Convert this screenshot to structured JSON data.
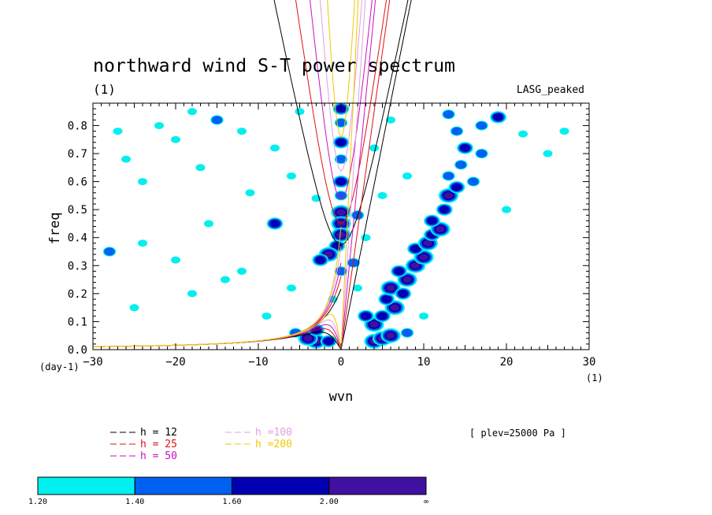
{
  "chart_data": {
    "type": "heatmap",
    "title": "northward wind S-T power spectrum",
    "subtitle_left": "(1)",
    "subtitle_right": "LASG_peaked",
    "xlabel": "wvn",
    "ylabel": "freq",
    "x_unit": "(1)",
    "y_unit": "(day-1)",
    "xlim": [
      -30,
      30
    ],
    "ylim": [
      0,
      0.88
    ],
    "xticks": [
      -30,
      -20,
      -10,
      0,
      10,
      20,
      30
    ],
    "yticks": [
      0.0,
      0.1,
      0.2,
      0.3,
      0.4,
      0.5,
      0.6,
      0.7,
      0.8
    ],
    "xtick_labels": [
      "−30",
      "−20",
      "−10",
      "0",
      "10",
      "20",
      "30"
    ],
    "ytick_labels": [
      "0.0",
      "0.1",
      "0.2",
      "0.3",
      "0.4",
      "0.5",
      "0.6",
      "0.7",
      "0.8"
    ],
    "annotation": "[ plev=25000 Pa ]",
    "dispersion_curves": [
      {
        "label": "h = 12",
        "h": 12,
        "color": "#000000"
      },
      {
        "label": "h = 25",
        "h": 25,
        "color": "#e01010"
      },
      {
        "label": "h = 50",
        "h": 50,
        "color": "#c810c0"
      },
      {
        "label": "h =100",
        "h": 100,
        "color": "#e0a0e0"
      },
      {
        "label": "h =200",
        "h": 200,
        "color": "#f0c800"
      }
    ],
    "colorbar": {
      "levels": [
        "1.20",
        "1.40",
        "1.60",
        "2.00",
        "∞"
      ],
      "colors": [
        "#00f0f0",
        "#0060f0",
        "#0000b0",
        "#4010a0"
      ]
    },
    "power_blobs": [
      {
        "x": 0,
        "y": 0.86,
        "level": 2
      },
      {
        "x": 0,
        "y": 0.81,
        "level": 1
      },
      {
        "x": 0,
        "y": 0.74,
        "level": 2
      },
      {
        "x": 0,
        "y": 0.68,
        "level": 1
      },
      {
        "x": 0,
        "y": 0.6,
        "level": 2
      },
      {
        "x": 0,
        "y": 0.55,
        "level": 1
      },
      {
        "x": 0,
        "y": 0.49,
        "level": 3
      },
      {
        "x": 0,
        "y": 0.45,
        "level": 3
      },
      {
        "x": 0,
        "y": 0.41,
        "level": 3
      },
      {
        "x": -0.5,
        "y": 0.37,
        "level": 2
      },
      {
        "x": -1.5,
        "y": 0.34,
        "level": 3
      },
      {
        "x": -2.5,
        "y": 0.32,
        "level": 2
      },
      {
        "x": 0,
        "y": 0.28,
        "level": 1
      },
      {
        "x": 2,
        "y": 0.48,
        "level": 1
      },
      {
        "x": -8,
        "y": 0.45,
        "level": 2
      },
      {
        "x": 1.5,
        "y": 0.31,
        "level": 1
      },
      {
        "x": -3,
        "y": 0.03,
        "level": 3
      },
      {
        "x": -4,
        "y": 0.04,
        "level": 3
      },
      {
        "x": -3,
        "y": 0.07,
        "level": 2
      },
      {
        "x": -1.5,
        "y": 0.03,
        "level": 2
      },
      {
        "x": -5.5,
        "y": 0.06,
        "level": 1
      },
      {
        "x": 4,
        "y": 0.03,
        "level": 3
      },
      {
        "x": 5,
        "y": 0.04,
        "level": 3
      },
      {
        "x": 6,
        "y": 0.05,
        "level": 3
      },
      {
        "x": 4,
        "y": 0.09,
        "level": 3
      },
      {
        "x": 5,
        "y": 0.12,
        "level": 2
      },
      {
        "x": 3,
        "y": 0.12,
        "level": 2
      },
      {
        "x": 6.5,
        "y": 0.15,
        "level": 3
      },
      {
        "x": 5.5,
        "y": 0.18,
        "level": 2
      },
      {
        "x": 6,
        "y": 0.22,
        "level": 3
      },
      {
        "x": 7.5,
        "y": 0.2,
        "level": 2
      },
      {
        "x": 8,
        "y": 0.25,
        "level": 3
      },
      {
        "x": 7,
        "y": 0.28,
        "level": 2
      },
      {
        "x": 9,
        "y": 0.3,
        "level": 3
      },
      {
        "x": 10,
        "y": 0.33,
        "level": 3
      },
      {
        "x": 9,
        "y": 0.36,
        "level": 2
      },
      {
        "x": 10.5,
        "y": 0.38,
        "level": 3
      },
      {
        "x": 11,
        "y": 0.41,
        "level": 2
      },
      {
        "x": 12,
        "y": 0.43,
        "level": 3
      },
      {
        "x": 11,
        "y": 0.46,
        "level": 2
      },
      {
        "x": 12.5,
        "y": 0.5,
        "level": 2
      },
      {
        "x": 13,
        "y": 0.55,
        "level": 3
      },
      {
        "x": 14,
        "y": 0.58,
        "level": 2
      },
      {
        "x": 13,
        "y": 0.62,
        "level": 1
      },
      {
        "x": 14.5,
        "y": 0.66,
        "level": 1
      },
      {
        "x": 15,
        "y": 0.72,
        "level": 2
      },
      {
        "x": 14,
        "y": 0.78,
        "level": 1
      },
      {
        "x": 17,
        "y": 0.8,
        "level": 1
      },
      {
        "x": 19,
        "y": 0.83,
        "level": 2
      },
      {
        "x": 13,
        "y": 0.84,
        "level": 1
      },
      {
        "x": 16,
        "y": 0.6,
        "level": 1
      },
      {
        "x": 17,
        "y": 0.7,
        "level": 1
      },
      {
        "x": 8,
        "y": 0.06,
        "level": 1
      },
      {
        "x": 10,
        "y": 0.12,
        "level": 0
      },
      {
        "x": 2,
        "y": 0.22,
        "level": 0
      },
      {
        "x": -22,
        "y": 0.8,
        "level": 0
      },
      {
        "x": -18,
        "y": 0.85,
        "level": 0
      },
      {
        "x": -15,
        "y": 0.82,
        "level": 1
      },
      {
        "x": -20,
        "y": 0.75,
        "level": 0
      },
      {
        "x": -26,
        "y": 0.68,
        "level": 0
      },
      {
        "x": -24,
        "y": 0.6,
        "level": 0
      },
      {
        "x": -17,
        "y": 0.65,
        "level": 0
      },
      {
        "x": -12,
        "y": 0.78,
        "level": 0
      },
      {
        "x": -8,
        "y": 0.72,
        "level": 0
      },
      {
        "x": -6,
        "y": 0.62,
        "level": 0
      },
      {
        "x": -3,
        "y": 0.54,
        "level": 0
      },
      {
        "x": -11,
        "y": 0.56,
        "level": 0
      },
      {
        "x": -16,
        "y": 0.45,
        "level": 0
      },
      {
        "x": -24,
        "y": 0.38,
        "level": 0
      },
      {
        "x": -28,
        "y": 0.35,
        "level": 1
      },
      {
        "x": -20,
        "y": 0.32,
        "level": 0
      },
      {
        "x": -12,
        "y": 0.28,
        "level": 0
      },
      {
        "x": -6,
        "y": 0.22,
        "level": 0
      },
      {
        "x": -18,
        "y": 0.2,
        "level": 0
      },
      {
        "x": -25,
        "y": 0.15,
        "level": 0
      },
      {
        "x": -9,
        "y": 0.12,
        "level": 0
      },
      {
        "x": -14,
        "y": 0.25,
        "level": 0
      },
      {
        "x": -27,
        "y": 0.78,
        "level": 0
      },
      {
        "x": -5,
        "y": 0.85,
        "level": 0
      },
      {
        "x": 4,
        "y": 0.72,
        "level": 0
      },
      {
        "x": 6,
        "y": 0.82,
        "level": 0
      },
      {
        "x": 8,
        "y": 0.62,
        "level": 0
      },
      {
        "x": 22,
        "y": 0.77,
        "level": 0
      },
      {
        "x": 27,
        "y": 0.78,
        "level": 0
      },
      {
        "x": 25,
        "y": 0.7,
        "level": 0
      },
      {
        "x": 20,
        "y": 0.5,
        "level": 0
      },
      {
        "x": 5,
        "y": 0.55,
        "level": 0
      },
      {
        "x": -1,
        "y": 0.18,
        "level": 0
      },
      {
        "x": 3,
        "y": 0.4,
        "level": 0
      }
    ]
  }
}
